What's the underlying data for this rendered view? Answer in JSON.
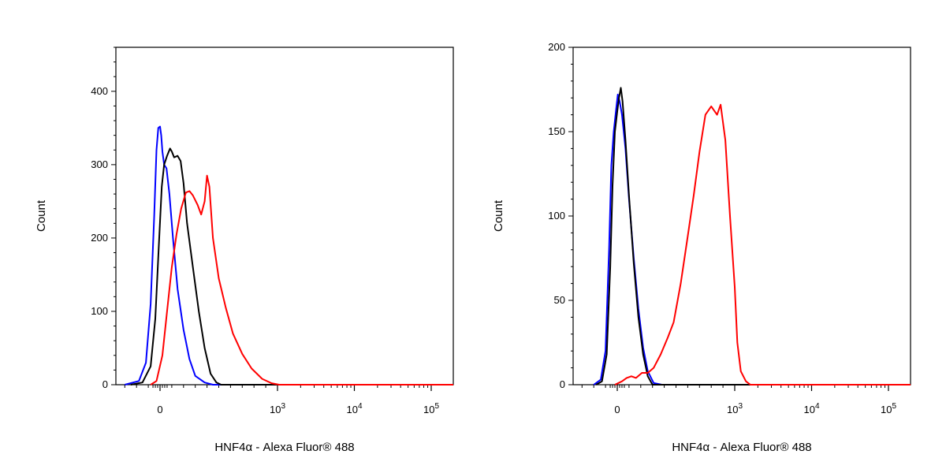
{
  "chart_data": [
    {
      "type": "line",
      "title": "",
      "xlabel": "HNF4α - Alexa Fluor® 488",
      "ylabel": "Count",
      "x_scale": "biexponential",
      "y_ticks": [
        0,
        100,
        200,
        300,
        400
      ],
      "ylim": [
        0,
        460
      ],
      "x_ticks": [
        {
          "value": 0,
          "label": "0"
        },
        {
          "value": 1000,
          "label": "10",
          "sup": "3"
        },
        {
          "value": 10000,
          "label": "10",
          "sup": "4"
        },
        {
          "value": 100000,
          "label": "10",
          "sup": "5"
        }
      ],
      "grid": false,
      "legend": "none",
      "series": [
        {
          "color": "#0000ff",
          "points": [
            [
              -300,
              0
            ],
            [
              -180,
              5
            ],
            [
              -120,
              30
            ],
            [
              -80,
              110
            ],
            [
              -50,
              230
            ],
            [
              -30,
              320
            ],
            [
              -15,
              350
            ],
            [
              0,
              352
            ],
            [
              10,
              340
            ],
            [
              20,
              318
            ],
            [
              35,
              300
            ],
            [
              55,
              295
            ],
            [
              80,
              260
            ],
            [
              110,
              200
            ],
            [
              150,
              130
            ],
            [
              200,
              75
            ],
            [
              250,
              35
            ],
            [
              300,
              12
            ],
            [
              380,
              3
            ],
            [
              450,
              0
            ]
          ]
        },
        {
          "color": "#000000",
          "points": [
            [
              -250,
              0
            ],
            [
              -150,
              3
            ],
            [
              -80,
              25
            ],
            [
              -40,
              90
            ],
            [
              -10,
              190
            ],
            [
              15,
              270
            ],
            [
              35,
              300
            ],
            [
              60,
              312
            ],
            [
              85,
              322
            ],
            [
              100,
              318
            ],
            [
              120,
              310
            ],
            [
              150,
              312
            ],
            [
              175,
              305
            ],
            [
              200,
              275
            ],
            [
              230,
              220
            ],
            [
              280,
              160
            ],
            [
              330,
              100
            ],
            [
              380,
              50
            ],
            [
              430,
              15
            ],
            [
              480,
              3
            ],
            [
              520,
              0
            ]
          ]
        },
        {
          "color": "#ff0000",
          "points": [
            [
              -80,
              0
            ],
            [
              -30,
              5
            ],
            [
              20,
              40
            ],
            [
              60,
              100
            ],
            [
              100,
              160
            ],
            [
              140,
              205
            ],
            [
              180,
              240
            ],
            [
              220,
              262
            ],
            [
              250,
              264
            ],
            [
              280,
              258
            ],
            [
              320,
              245
            ],
            [
              350,
              232
            ],
            [
              380,
              250
            ],
            [
              400,
              285
            ],
            [
              420,
              270
            ],
            [
              450,
              200
            ],
            [
              500,
              145
            ],
            [
              560,
              105
            ],
            [
              620,
              70
            ],
            [
              700,
              42
            ],
            [
              780,
              22
            ],
            [
              870,
              8
            ],
            [
              950,
              2
            ],
            [
              1050,
              0
            ]
          ]
        }
      ]
    },
    {
      "type": "line",
      "title": "",
      "xlabel": "HNF4α - Alexa Fluor® 488",
      "ylabel": "Count",
      "x_scale": "biexponential",
      "y_ticks": [
        0,
        50,
        100,
        150,
        200
      ],
      "ylim": [
        0,
        200
      ],
      "x_ticks": [
        {
          "value": 0,
          "label": "0"
        },
        {
          "value": 1000,
          "label": "10",
          "sup": "3"
        },
        {
          "value": 10000,
          "label": "10",
          "sup": "4"
        },
        {
          "value": 100000,
          "label": "10",
          "sup": "5"
        }
      ],
      "grid": false,
      "legend": "none",
      "series": [
        {
          "color": "#0000ff",
          "points": [
            [
              -200,
              0
            ],
            [
              -140,
              3
            ],
            [
              -100,
              20
            ],
            [
              -70,
              80
            ],
            [
              -50,
              130
            ],
            [
              -30,
              150
            ],
            [
              -10,
              163
            ],
            [
              5,
              172
            ],
            [
              20,
              168
            ],
            [
              40,
              160
            ],
            [
              70,
              140
            ],
            [
              100,
              110
            ],
            [
              140,
              75
            ],
            [
              180,
              45
            ],
            [
              220,
              22
            ],
            [
              260,
              8
            ],
            [
              310,
              1
            ],
            [
              380,
              0
            ]
          ]
        },
        {
          "color": "#000000",
          "points": [
            [
              -180,
              0
            ],
            [
              -130,
              2
            ],
            [
              -90,
              18
            ],
            [
              -60,
              70
            ],
            [
              -40,
              118
            ],
            [
              -20,
              150
            ],
            [
              0,
              162
            ],
            [
              15,
              170
            ],
            [
              30,
              176
            ],
            [
              45,
              168
            ],
            [
              70,
              145
            ],
            [
              100,
              112
            ],
            [
              140,
              72
            ],
            [
              180,
              40
            ],
            [
              220,
              18
            ],
            [
              260,
              5
            ],
            [
              300,
              0
            ]
          ]
        },
        {
          "color": "#ff0000",
          "points": [
            [
              -20,
              0
            ],
            [
              40,
              2
            ],
            [
              80,
              4
            ],
            [
              120,
              5
            ],
            [
              160,
              4
            ],
            [
              210,
              7
            ],
            [
              260,
              7
            ],
            [
              310,
              10
            ],
            [
              370,
              18
            ],
            [
              430,
              28
            ],
            [
              480,
              37
            ],
            [
              540,
              60
            ],
            [
              600,
              88
            ],
            [
              650,
              112
            ],
            [
              700,
              138
            ],
            [
              750,
              160
            ],
            [
              800,
              165
            ],
            [
              850,
              160
            ],
            [
              880,
              166
            ],
            [
              920,
              145
            ],
            [
              960,
              100
            ],
            [
              1000,
              58
            ],
            [
              1080,
              25
            ],
            [
              1200,
              8
            ],
            [
              1400,
              2
            ],
            [
              1600,
              0
            ],
            [
              2200,
              0
            ]
          ]
        }
      ]
    }
  ]
}
